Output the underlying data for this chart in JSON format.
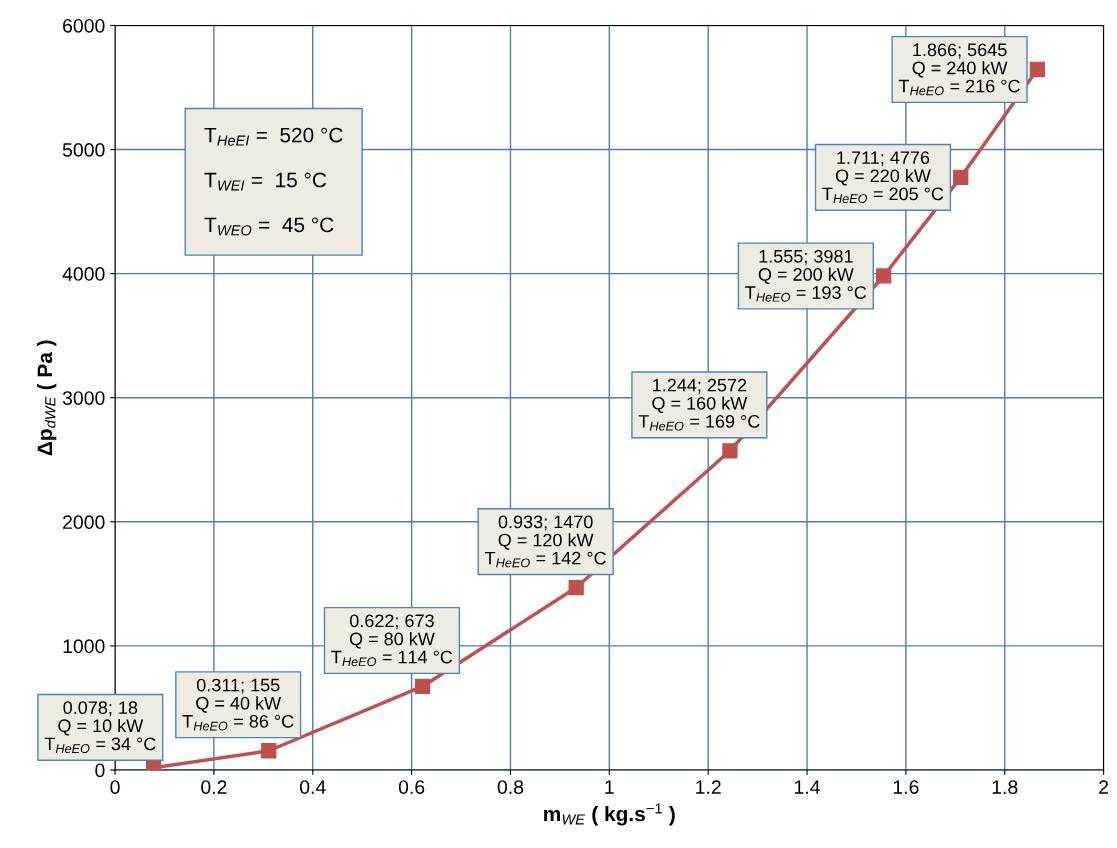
{
  "chart_data": {
    "type": "line",
    "xlabel": "m$_{WE}$ ( kg.s$^{−1}$ )",
    "ylabel": "Δp$_{dWE}$ ( Pa )",
    "x": [
      0.078,
      0.311,
      0.622,
      0.933,
      1.244,
      1.555,
      1.711,
      1.866
    ],
    "series": [
      {
        "color": "#c0504d",
        "values": [
          18,
          155,
          673,
          1470,
          2572,
          3981,
          4776,
          5645
        ]
      }
    ],
    "xlim": [
      0,
      2
    ],
    "xticks": [
      0,
      0.2,
      0.4,
      0.6,
      0.8,
      1,
      1.2,
      1.4,
      1.6,
      1.8,
      2
    ],
    "ylim": [
      0,
      6000
    ],
    "yticks": [
      0,
      1000,
      2000,
      3000,
      4000,
      5000,
      6000
    ],
    "grid": true,
    "marker": "square",
    "line_style": "solid",
    "annotations": [
      {
        "text": "0.078; 18\nQ = 10 kW\nT$_{HeEO}$ = 34 °C",
        "x": 0.078,
        "y": 18
      },
      {
        "text": "0.311; 155\nQ = 40 kW\nT$_{HeEO}$ = 86 °C",
        "x": 0.311,
        "y": 155
      },
      {
        "text": "0.622; 673\nQ = 80 kW\nT$_{HeEO}$ = 114 °C",
        "x": 0.622,
        "y": 673
      },
      {
        "text": "0.933; 1470\nQ = 120 kW\nT$_{HeEO}$ = 142 °C",
        "x": 0.933,
        "y": 1470
      },
      {
        "text": "1.244; 2572\nQ = 160 kW\nT$_{HeEO}$ = 169 °C",
        "x": 1.244,
        "y": 2572
      },
      {
        "text": "1.555; 3981\nQ = 200 kW\nT$_{HeEO}$ = 193 °C",
        "x": 1.555,
        "y": 3981
      },
      {
        "text": "1.711; 4776\nQ = 220 kW\nT$_{HeEO}$ = 205 °C",
        "x": 1.711,
        "y": 4776
      },
      {
        "text": "1.866; 5645\nQ = 240 kW\nT$_{HeEO}$ = 216 °C",
        "x": 1.866,
        "y": 5645
      },
      "T$_{HeEI}$ =  520 °C\n\nT$_{WEI}$ =  15 °C\n\nT$_{WEO}$ =  45 °C"
    ]
  }
}
